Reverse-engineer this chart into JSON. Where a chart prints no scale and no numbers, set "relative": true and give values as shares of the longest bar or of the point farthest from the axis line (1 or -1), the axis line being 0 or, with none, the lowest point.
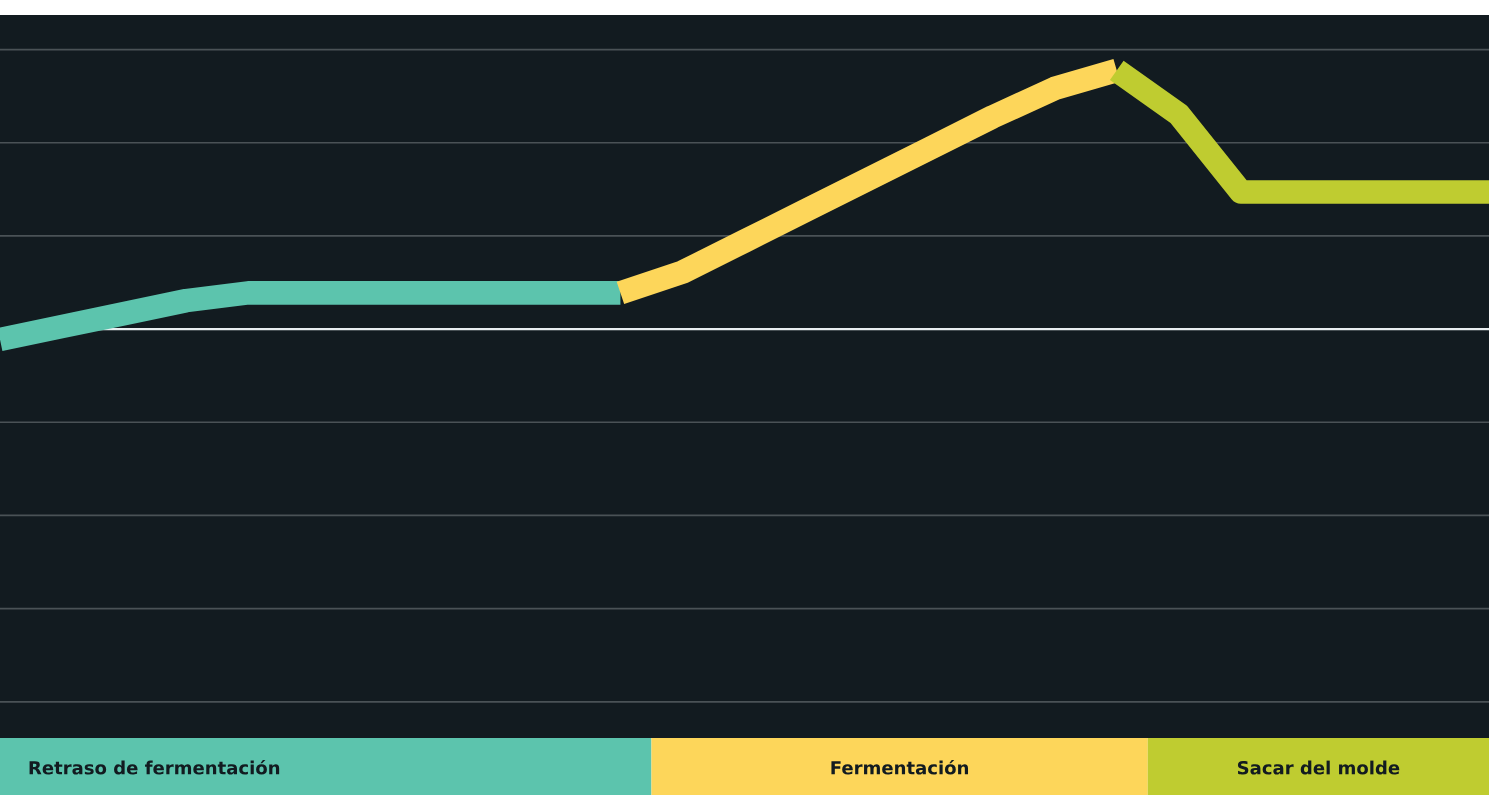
{
  "chart_data": {
    "type": "line",
    "relative": true,
    "marker": "none",
    "line_style": "solid",
    "categories": [
      null,
      null,
      null,
      null,
      null,
      null,
      null,
      null,
      null,
      null,
      null,
      null,
      null,
      null,
      null,
      null,
      null,
      null,
      null,
      null,
      null,
      null,
      null,
      null,
      null
    ],
    "series": [
      {
        "color": "#5cc4ad",
        "values": [
          -0.04,
          0.01,
          0.06,
          0.11,
          0.14,
          0.14,
          0.14,
          0.14,
          0.14,
          0.14,
          0.14,
          null,
          null,
          null,
          null,
          null,
          null,
          null,
          null,
          null,
          null,
          null,
          null,
          null,
          null
        ]
      },
      {
        "color": "#fdd65a",
        "values": [
          null,
          null,
          null,
          null,
          null,
          null,
          null,
          null,
          null,
          null,
          0.14,
          0.22,
          0.34,
          0.46,
          0.58,
          0.7,
          0.82,
          0.93,
          1.0,
          null,
          null,
          null,
          null,
          null,
          null
        ]
      },
      {
        "color": "#bfcc30",
        "values": [
          null,
          null,
          null,
          null,
          null,
          null,
          null,
          null,
          null,
          null,
          null,
          null,
          null,
          null,
          null,
          null,
          null,
          null,
          1.0,
          0.83,
          0.53,
          0.53,
          0.53,
          0.53,
          0.53
        ]
      }
    ],
    "ref_lines": [
      {
        "axis": "y",
        "value": 1.08,
        "color": "#4a5256"
      },
      {
        "axis": "y",
        "value": 0.72,
        "color": "#4a5256"
      },
      {
        "axis": "y",
        "value": 0.36,
        "color": "#4a5256"
      },
      {
        "axis": "y",
        "value": -0.36,
        "color": "#4a5256"
      },
      {
        "axis": "y",
        "value": -0.72,
        "color": "#4a5256"
      },
      {
        "axis": "y",
        "value": -1.08,
        "color": "#4a5256"
      },
      {
        "axis": "y",
        "value": -1.44,
        "color": "#4a5256"
      }
    ],
    "annotations": [
      "Retraso de fermentación",
      "Fermentación",
      "Sacar del molde"
    ]
  }
}
